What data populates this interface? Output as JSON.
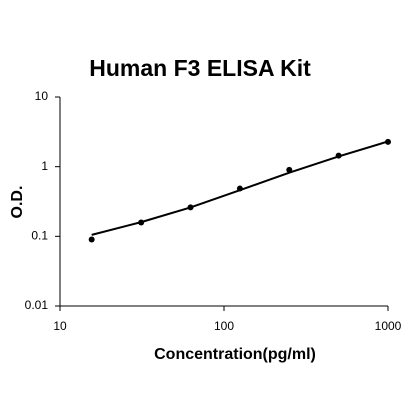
{
  "chart_data": {
    "type": "scatter",
    "title": "Human F3 ELISA Kit",
    "x_label": "Concentration(pg/ml)",
    "y_label": "O.D.",
    "x": [
      15.6,
      31.25,
      62.5,
      125,
      250,
      500,
      1000
    ],
    "series": [
      {
        "style": "points",
        "color": "#000000",
        "values": [
          0.09,
          0.158,
          0.26,
          0.485,
          0.9,
          1.44,
          2.27
        ]
      },
      {
        "style": "line",
        "color": "#000000",
        "values": [
          0.105,
          0.16,
          0.26,
          0.46,
          0.82,
          1.4,
          2.3
        ]
      }
    ],
    "xscale": "log",
    "yscale": "log",
    "xlim": [
      10,
      1000
    ],
    "ylim": [
      0.01,
      10
    ],
    "xticks": [
      10,
      100,
      1000
    ],
    "yticks": [
      0.01,
      0.1,
      1,
      10
    ],
    "grid": false
  }
}
